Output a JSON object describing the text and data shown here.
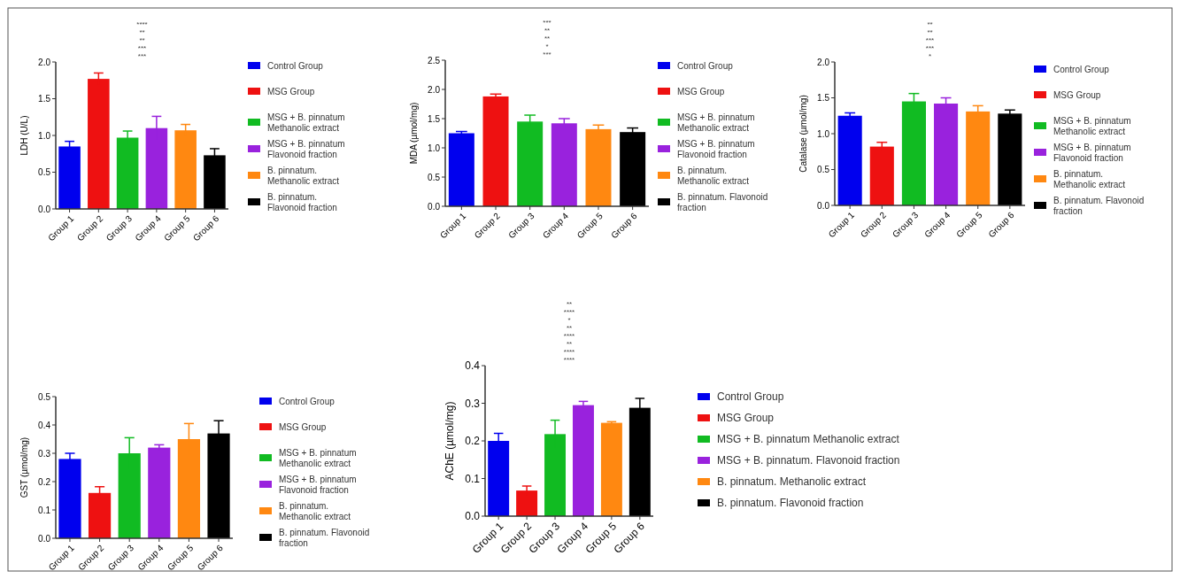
{
  "chart_data": [
    {
      "type": "bar",
      "ylabel": "LDH (U/L)",
      "categories": [
        "Group 1",
        "Group 2",
        "Group 3",
        "Group 4",
        "Group 5",
        "Group 6"
      ],
      "legend": "right",
      "ylim": [
        0,
        2
      ],
      "yticks": [
        {
          "value": 0,
          "label": "0.0"
        },
        0.5,
        {
          "value": 1,
          "label": "1.0"
        },
        1.5,
        {
          "value": 2,
          "label": "2.0"
        }
      ],
      "series": [
        {
          "name": "Control Group",
          "color": "#0000ee",
          "values": [
            0.85,
            null,
            null,
            null,
            null,
            null
          ],
          "errors": [
            0.07,
            null,
            null,
            null,
            null,
            null
          ]
        },
        {
          "name": "MSG Group",
          "color": "#ee1111",
          "values": [
            null,
            1.77,
            null,
            null,
            null,
            null
          ],
          "errors": [
            null,
            0.08,
            null,
            null,
            null,
            null
          ]
        },
        {
          "name": "MSG + B. pinnatum Methanolic extract",
          "color": "#11bb22",
          "values": [
            null,
            null,
            0.97,
            null,
            null,
            null
          ],
          "errors": [
            null,
            null,
            0.09,
            null,
            null,
            null
          ]
        },
        {
          "name": "MSG + B. pinnatum Flavonoid fraction",
          "color": "#9922dd",
          "values": [
            null,
            null,
            null,
            1.1,
            null,
            null
          ],
          "errors": [
            null,
            null,
            null,
            0.16,
            null,
            null
          ]
        },
        {
          "name": "B. pinnatum. Methanolic extract",
          "color": "#ff8811",
          "values": [
            null,
            null,
            null,
            null,
            1.07,
            null
          ],
          "errors": [
            null,
            null,
            null,
            null,
            0.08,
            null
          ]
        },
        {
          "name": "B. pinnatum. Flavonoid fraction",
          "color": "#000000",
          "values": [
            null,
            null,
            null,
            null,
            null,
            0.73
          ],
          "errors": [
            null,
            null,
            null,
            null,
            null,
            0.09
          ]
        }
      ],
      "annotations": [
        "***",
        "***",
        "**",
        "**",
        "****"
      ]
    },
    {
      "type": "bar",
      "ylabel": "MDA (µmol/mg)",
      "categories": [
        "Group 1",
        "Group 2",
        "Group 3",
        "Group 4",
        "Group 5",
        "Group 6"
      ],
      "legend": "right",
      "ylim": [
        0,
        2.5
      ],
      "yticks": [
        {
          "value": 0,
          "label": "0.0"
        },
        0.5,
        {
          "value": 1,
          "label": "1.0"
        },
        1.5,
        {
          "value": 2,
          "label": "2.0"
        },
        2.5
      ],
      "series": [
        {
          "name": "Control Group",
          "color": "#0000ee",
          "values": [
            1.25,
            null,
            null,
            null,
            null,
            null
          ],
          "errors": [
            0.03,
            null,
            null,
            null,
            null,
            null
          ]
        },
        {
          "name": "MSG Group",
          "color": "#ee1111",
          "values": [
            null,
            1.88,
            null,
            null,
            null,
            null
          ],
          "errors": [
            null,
            0.04,
            null,
            null,
            null,
            null
          ]
        },
        {
          "name": "MSG + B. pinnatum Methanolic extract",
          "color": "#11bb22",
          "values": [
            null,
            null,
            1.45,
            null,
            null,
            null
          ],
          "errors": [
            null,
            null,
            0.11,
            null,
            null,
            null
          ]
        },
        {
          "name": "MSG + B. pinnatum Flavonoid fraction",
          "color": "#9922dd",
          "values": [
            null,
            null,
            null,
            1.42,
            null,
            null
          ],
          "errors": [
            null,
            null,
            null,
            0.08,
            null,
            null
          ]
        },
        {
          "name": "B. pinnatum. Methanolic extract",
          "color": "#ff8811",
          "values": [
            null,
            null,
            null,
            null,
            1.32,
            null
          ],
          "errors": [
            null,
            null,
            null,
            null,
            0.07,
            null
          ]
        },
        {
          "name": "B. pinnatum. Flavonoid fraction",
          "color": "#000000",
          "values": [
            null,
            null,
            null,
            null,
            null,
            1.27
          ],
          "errors": [
            null,
            null,
            null,
            null,
            null,
            0.07
          ]
        }
      ],
      "annotations": [
        "***",
        "*",
        "**",
        "**",
        "***"
      ]
    },
    {
      "type": "bar",
      "ylabel": "Catalase (µmol/mg)",
      "categories": [
        "Group 1",
        "Group 2",
        "Group 3",
        "Group 4",
        "Group 5",
        "Group 6"
      ],
      "legend": "right",
      "ylim": [
        0,
        2
      ],
      "yticks": [
        {
          "value": 0,
          "label": "0.0"
        },
        0.5,
        {
          "value": 1,
          "label": "1.0"
        },
        1.5,
        {
          "value": 2,
          "label": "2.0"
        }
      ],
      "series": [
        {
          "name": "Control Group",
          "color": "#0000ee",
          "values": [
            1.25,
            null,
            null,
            null,
            null,
            null
          ],
          "errors": [
            0.04,
            null,
            null,
            null,
            null,
            null
          ]
        },
        {
          "name": "MSG Group",
          "color": "#ee1111",
          "values": [
            null,
            0.82,
            null,
            null,
            null,
            null
          ],
          "errors": [
            null,
            0.06,
            null,
            null,
            null,
            null
          ]
        },
        {
          "name": "MSG + B. pinnatum Methanolic extract",
          "color": "#11bb22",
          "values": [
            null,
            null,
            1.45,
            null,
            null,
            null
          ],
          "errors": [
            null,
            null,
            0.11,
            null,
            null,
            null
          ]
        },
        {
          "name": "MSG + B. pinnatum Flavonoid fraction",
          "color": "#9922dd",
          "values": [
            null,
            null,
            null,
            1.42,
            null,
            null
          ],
          "errors": [
            null,
            null,
            null,
            0.08,
            null,
            null
          ]
        },
        {
          "name": "B. pinnatum. Methanolic extract",
          "color": "#ff8811",
          "values": [
            null,
            null,
            null,
            null,
            1.31,
            null
          ],
          "errors": [
            null,
            null,
            null,
            null,
            0.08,
            null
          ]
        },
        {
          "name": "B. pinnatum. Flavonoid fraction",
          "color": "#000000",
          "values": [
            null,
            null,
            null,
            null,
            null,
            1.28
          ],
          "errors": [
            null,
            null,
            null,
            null,
            null,
            0.05
          ]
        }
      ],
      "annotations": [
        "*",
        "***",
        "***",
        "**",
        "**"
      ]
    },
    {
      "type": "bar",
      "ylabel": "GST (µmol/mg)",
      "categories": [
        "Group 1",
        "Group 2",
        "Group 3",
        "Group 4",
        "Group 5",
        "Group 6"
      ],
      "legend": "right",
      "ylim": [
        0,
        0.5
      ],
      "yticks": [
        {
          "value": 0,
          "label": "0.0"
        },
        0.1,
        0.2,
        0.3,
        0.4,
        0.5
      ],
      "series": [
        {
          "name": "Control Group",
          "color": "#0000ee",
          "values": [
            0.28,
            null,
            null,
            null,
            null,
            null
          ],
          "errors": [
            0.02,
            null,
            null,
            null,
            null,
            null
          ]
        },
        {
          "name": "MSG Group",
          "color": "#ee1111",
          "values": [
            null,
            0.16,
            null,
            null,
            null,
            null
          ],
          "errors": [
            null,
            0.022,
            null,
            null,
            null,
            null
          ]
        },
        {
          "name": "MSG + B. pinnatum Methanolic extract",
          "color": "#11bb22",
          "values": [
            null,
            null,
            0.3,
            null,
            null,
            null
          ],
          "errors": [
            null,
            null,
            0.055,
            null,
            null,
            null
          ]
        },
        {
          "name": "MSG + B. pinnatum Flavonoid fraction",
          "color": "#9922dd",
          "values": [
            null,
            null,
            null,
            0.32,
            null,
            null
          ],
          "errors": [
            null,
            null,
            null,
            0.01,
            null,
            null
          ]
        },
        {
          "name": "B. pinnatum. Methanolic extract",
          "color": "#ff8811",
          "values": [
            null,
            null,
            null,
            null,
            0.35,
            null
          ],
          "errors": [
            null,
            null,
            null,
            null,
            0.055,
            null
          ]
        },
        {
          "name": "B. pinnatum. Flavonoid fraction",
          "color": "#000000",
          "values": [
            null,
            null,
            null,
            null,
            null,
            0.37
          ],
          "errors": [
            null,
            null,
            null,
            null,
            null,
            0.045
          ]
        }
      ]
    },
    {
      "type": "bar",
      "ylabel": "AChE (µmol/mg)",
      "categories": [
        "Group 1",
        "Group 2",
        "Group 3",
        "Group 4",
        "Group 5",
        "Group 6"
      ],
      "legend": "right",
      "ylim": [
        0,
        0.4
      ],
      "yticks": [
        {
          "value": 0,
          "label": "0.0"
        },
        0.1,
        0.2,
        0.3,
        0.4
      ],
      "series": [
        {
          "name": "Control Group",
          "color": "#0000ee",
          "values": [
            0.2,
            null,
            null,
            null,
            null,
            null
          ],
          "errors": [
            0.02,
            null,
            null,
            null,
            null,
            null
          ]
        },
        {
          "name": "MSG Group",
          "color": "#ee1111",
          "values": [
            null,
            0.068,
            null,
            null,
            null,
            null
          ],
          "errors": [
            null,
            0.012,
            null,
            null,
            null,
            null
          ]
        },
        {
          "name": "MSG + B. pinnatum Methanolic extract",
          "color": "#11bb22",
          "values": [
            null,
            null,
            0.218,
            null,
            null,
            null
          ],
          "errors": [
            null,
            null,
            0.037,
            null,
            null,
            null
          ]
        },
        {
          "name": "MSG + B. pinnatum. Flavonoid fraction",
          "color": "#9922dd",
          "values": [
            null,
            null,
            null,
            0.295,
            null,
            null
          ],
          "errors": [
            null,
            null,
            null,
            0.01,
            null,
            null
          ]
        },
        {
          "name": "B. pinnatum. Methanolic extract",
          "color": "#ff8811",
          "values": [
            null,
            null,
            null,
            null,
            0.248,
            null
          ],
          "errors": [
            null,
            null,
            null,
            null,
            0.003,
            null
          ]
        },
        {
          "name": "B. pinnatum. Flavonoid fraction",
          "color": "#000000",
          "values": [
            null,
            null,
            null,
            null,
            null,
            0.288
          ],
          "errors": [
            null,
            null,
            null,
            null,
            null,
            0.025
          ]
        }
      ],
      "annotations": [
        "****",
        "****",
        "**",
        "****",
        "**",
        "*",
        "****",
        "**"
      ]
    }
  ]
}
